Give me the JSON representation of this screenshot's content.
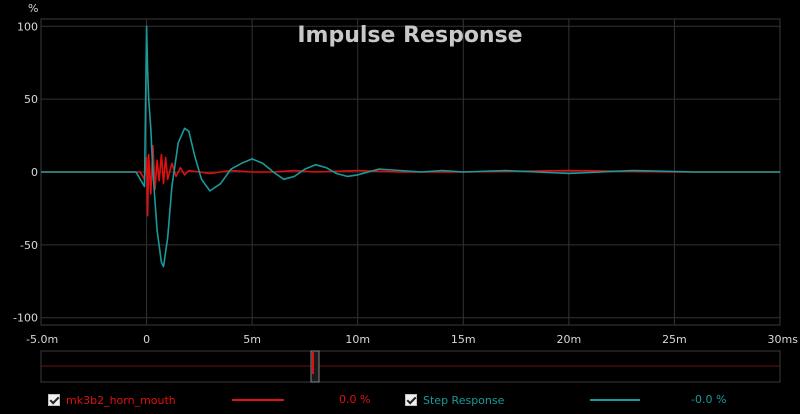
{
  "chart_data": {
    "type": "line",
    "title": "Impulse Response",
    "ylabel": "%",
    "xlim": [
      -5,
      30
    ],
    "ylim": [
      -105,
      105
    ],
    "xticks": [
      -5,
      0,
      5,
      10,
      15,
      20,
      25,
      30
    ],
    "xtick_labels": [
      "-5.0m",
      "0",
      "5m",
      "10m",
      "15m",
      "20m",
      "25m",
      "30ms"
    ],
    "yticks": [
      100,
      50,
      0,
      -50,
      -100
    ],
    "ytick_labels": [
      "100",
      "50",
      "0",
      "-50",
      "-100"
    ],
    "grid": true,
    "series": [
      {
        "name": "mk3b2_horn_mouth",
        "color": "#e01010",
        "x": [
          -5,
          -0.3,
          -0.1,
          0,
          0.05,
          0.1,
          0.2,
          0.3,
          0.4,
          0.5,
          0.6,
          0.7,
          0.8,
          0.9,
          1.0,
          1.2,
          1.4,
          1.6,
          1.8,
          2.0,
          2.5,
          3,
          4,
          5,
          6,
          7,
          8,
          10,
          12,
          15,
          20,
          25,
          30
        ],
        "y": [
          0,
          0,
          -5,
          10,
          -30,
          12,
          -15,
          18,
          -12,
          8,
          -6,
          12,
          -8,
          10,
          -5,
          6,
          -3,
          3,
          -2,
          1,
          0,
          -1,
          1,
          0,
          0,
          1,
          0,
          1,
          0,
          0,
          1,
          0,
          0
        ]
      },
      {
        "name": "Step Response",
        "color": "#1a9a9a",
        "x": [
          -5,
          -0.5,
          -0.1,
          0,
          0.05,
          0.1,
          0.2,
          0.3,
          0.5,
          0.7,
          0.8,
          1.0,
          1.2,
          1.5,
          1.8,
          2.0,
          2.3,
          2.6,
          3.0,
          3.5,
          4.0,
          4.5,
          5.0,
          5.5,
          6.0,
          6.5,
          7.0,
          7.5,
          8.0,
          8.5,
          9.0,
          9.5,
          10.0,
          11.0,
          12.0,
          13.0,
          14.0,
          15.0,
          17.0,
          20.0,
          23.0,
          26.0,
          30.0
        ],
        "y": [
          0,
          0,
          -10,
          100,
          70,
          50,
          30,
          0,
          -40,
          -62,
          -65,
          -45,
          -10,
          20,
          30,
          28,
          10,
          -5,
          -13,
          -8,
          2,
          6,
          9,
          6,
          0,
          -5,
          -3,
          2,
          5,
          3,
          -1,
          -3,
          -2,
          2,
          1,
          0,
          1,
          0,
          1,
          -1,
          1,
          0,
          0
        ]
      }
    ]
  },
  "legend": {
    "items": [
      {
        "name": "mk3b2_horn_mouth",
        "value": "0.0 %",
        "color": "#e01010"
      },
      {
        "name": "Step Response",
        "value": "-0.0 %",
        "color": "#1a9a9a"
      }
    ]
  },
  "overview": {
    "window_from_ms": 0.0,
    "window_to_ms": 1.8
  }
}
